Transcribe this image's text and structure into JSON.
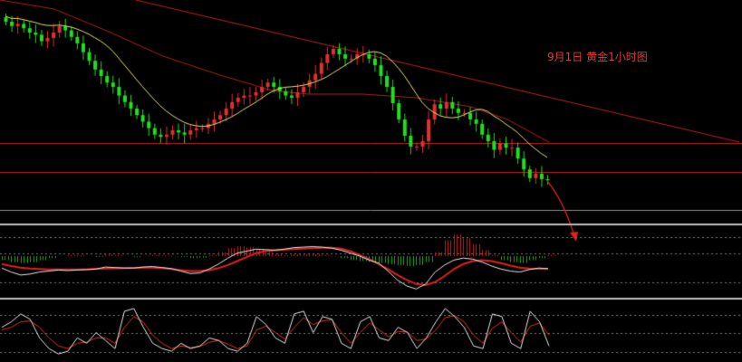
{
  "chart_data": {
    "type": "candlestick",
    "title": "9月1日 黄金1小时图",
    "colors": {
      "background": "#000000",
      "bull": "#e03030",
      "bear": "#22dd22",
      "ma_short": "#e8e070",
      "ma_long": "#b02020",
      "trendline": "#c02020",
      "support": "#c02020",
      "divider": "#bbbbbb",
      "macd_dif": "#e8e8e8",
      "macd_dea": "#e02020",
      "macd_hist_pos": "#c02020",
      "macd_hist_neg": "#22aa22",
      "kdj_k": "#e8e8e8",
      "kdj_d": "#e03030",
      "forecast_arrow": "#e02020",
      "title": "#e23a3a"
    },
    "closes": [
      38,
      37.6,
      37.8,
      37.4,
      37,
      36.8,
      36.2,
      36.5,
      37,
      37.6,
      37.2,
      36.6,
      36,
      35.2,
      34.4,
      33.6,
      33,
      32.4,
      32,
      31.2,
      30.6,
      30,
      29.4,
      28.8,
      28.2,
      27.6,
      27.4,
      27.6,
      28,
      27.8,
      27.6,
      28,
      28.2,
      28.2,
      28.6,
      29,
      29.4,
      30,
      30.6,
      31,
      31.2,
      31.2,
      31.5,
      32,
      32.4,
      32,
      31.6,
      31.2,
      31,
      31.5,
      32,
      32.6,
      33.2,
      34.2,
      35,
      35.5,
      35,
      34.6,
      34.6,
      35,
      35,
      34.6,
      34,
      33,
      32,
      30.5,
      29,
      27.5,
      26.5,
      26.5,
      27,
      29,
      30.4,
      30,
      30.6,
      30,
      29.6,
      29.6,
      29,
      28.6,
      27.6,
      27,
      26.2,
      26.8,
      26.4,
      26.4,
      25.4,
      24.4,
      23.6,
      24,
      23.5,
      23.4
    ],
    "macd_dif": [
      -1.2,
      -1.6,
      -1.9,
      -1.8,
      -1.6,
      -1.5,
      -1.4,
      -1.45,
      -1.4,
      -1.35,
      -1.3,
      -1.1,
      -1.15,
      -1.2,
      -1.2,
      -1.1,
      -1.05,
      -1.15,
      -1.25,
      -1.5,
      -1.75,
      -1.7,
      -1.3,
      -0.8,
      -0.2,
      0.3,
      0.5,
      0.7,
      0.65,
      0.6,
      0.7,
      0.85,
      0.9,
      0.95,
      0.9,
      0.8,
      0.6,
      0.3,
      0,
      -0.4,
      -0.7,
      -1.5,
      -2.4,
      -3,
      -3.3,
      -2.8,
      -1.6,
      -0.9,
      -0.4,
      -0.2,
      -0.3,
      -0.6,
      -1,
      -1.3,
      -1.5,
      -1.6,
      -1.35,
      -1.2,
      -1.25
    ],
    "macd_dea": [
      -0.8,
      -1,
      -1.15,
      -1.25,
      -1.3,
      -1.35,
      -1.35,
      -1.35,
      -1.34,
      -1.33,
      -1.28,
      -1.25,
      -1.22,
      -1.2,
      -1.18,
      -1.16,
      -1.15,
      -1.2,
      -1.3,
      -1.4,
      -1.5,
      -1.5,
      -1.4,
      -1.2,
      -0.9,
      -0.5,
      -0.1,
      0.3,
      0.5,
      0.6,
      0.65,
      0.7,
      0.75,
      0.8,
      0.85,
      0.85,
      0.75,
      0.5,
      0.1,
      -0.3,
      -0.8,
      -1.3,
      -1.9,
      -2.4,
      -2.8,
      -2.9,
      -2.6,
      -2,
      -1.3,
      -0.8,
      -0.5,
      -0.4,
      -0.5,
      -0.7,
      -0.95,
      -1.15,
      -1.25,
      -1.28,
      -1.3
    ],
    "macd_hist": [
      -0.2,
      -0.3,
      -0.35,
      -0.3,
      -0.2,
      -0.1,
      0,
      0.05,
      0.05,
      0,
      -0.05,
      0.08,
      0.05,
      0,
      -0.05,
      0.02,
      0.05,
      0.03,
      -0.02,
      -0.05,
      -0.1,
      -0.08,
      0.05,
      0.2,
      0.4,
      0.5,
      0.45,
      0.35,
      0.2,
      0.1,
      0.05,
      0.1,
      0.1,
      0.1,
      0.05,
      -0.02,
      -0.1,
      -0.2,
      -0.25,
      -0.3,
      -0.35,
      -0.4,
      -0.45,
      -0.5,
      -0.45,
      -0.3,
      0.2,
      0.8,
      1.1,
      0.9,
      0.6,
      0.3,
      0.05,
      -0.2,
      -0.3,
      -0.35,
      -0.2,
      -0.1,
      0.05
    ],
    "kdj_k": [
      60,
      70,
      85,
      75,
      40,
      20,
      10,
      15,
      40,
      30,
      50,
      35,
      20,
      90,
      95,
      60,
      30,
      20,
      15,
      30,
      20,
      25,
      40,
      35,
      20,
      15,
      30,
      80,
      65,
      40,
      30,
      85,
      90,
      50,
      80,
      75,
      30,
      20,
      70,
      80,
      40,
      35,
      60,
      50,
      20,
      40,
      70,
      95,
      80,
      60,
      25,
      20,
      85,
      80,
      30,
      20,
      90,
      70,
      25
    ],
    "kdj_d": [
      55,
      60,
      70,
      72,
      60,
      40,
      25,
      20,
      30,
      32,
      40,
      40,
      30,
      60,
      80,
      70,
      45,
      30,
      20,
      25,
      22,
      24,
      32,
      35,
      28,
      20,
      25,
      55,
      62,
      50,
      38,
      60,
      78,
      65,
      72,
      74,
      50,
      30,
      50,
      68,
      55,
      42,
      52,
      51,
      35,
      38,
      55,
      78,
      82,
      70,
      45,
      30,
      58,
      70,
      50,
      32,
      62,
      68,
      45
    ]
  }
}
